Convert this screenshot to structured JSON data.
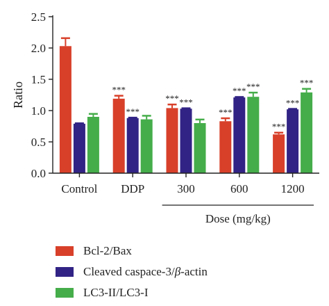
{
  "chart_data": {
    "type": "bar",
    "categories": [
      "Control",
      "DDP",
      "300",
      "600",
      "1200"
    ],
    "group_label": "Dose (mg/kg)",
    "ylabel": "Ratio",
    "ylim": [
      0,
      2.5
    ],
    "yticks": [
      "0.0",
      "0.5",
      "1.0",
      "1.5",
      "2.0",
      "2.5"
    ],
    "series": [
      {
        "name": "Bcl-2/Bax",
        "color": "#d8402a",
        "values": [
          2.03,
          1.19,
          1.04,
          0.83,
          0.62
        ],
        "errors": [
          0.13,
          0.05,
          0.06,
          0.05,
          0.03
        ],
        "annotations": [
          "",
          "***",
          "***",
          "***",
          "***"
        ]
      },
      {
        "name_prefix": "Cleaved caspace-3/",
        "name_symbol": "β",
        "name_suffix": "-actin",
        "color": "#312385",
        "values": [
          0.79,
          0.88,
          1.03,
          1.21,
          1.02
        ],
        "errors": [
          0.01,
          0.01,
          0.01,
          0.01,
          0.01
        ],
        "annotations": [
          "",
          "***",
          "***",
          "***",
          "***"
        ]
      },
      {
        "name": "LC3-II/LC3-I",
        "color": "#45ad4a",
        "values": [
          0.9,
          0.86,
          0.8,
          1.22,
          1.29
        ],
        "errors": [
          0.05,
          0.06,
          0.06,
          0.07,
          0.06
        ],
        "annotations": [
          "",
          "",
          "",
          "***",
          "***"
        ]
      }
    ]
  }
}
